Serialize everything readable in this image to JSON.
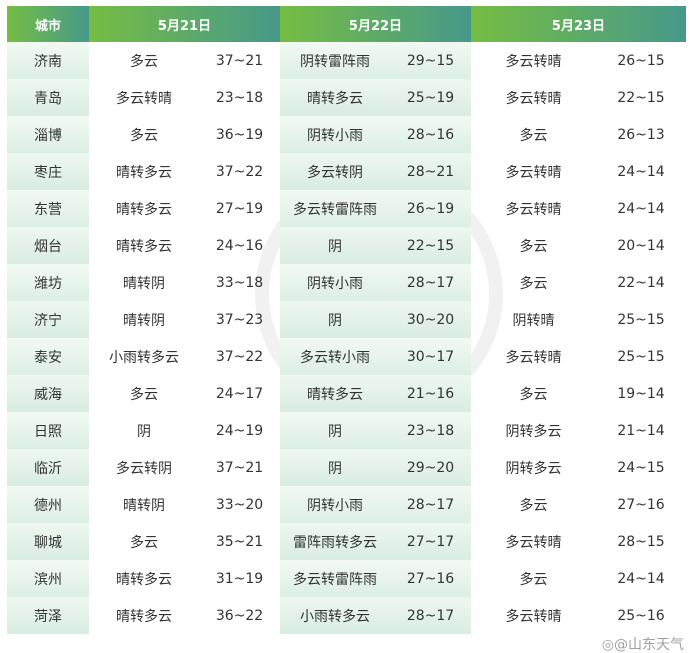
{
  "header": {
    "city": "城市",
    "dates": [
      "5月21日",
      "5月22日",
      "5月23日"
    ]
  },
  "rows": [
    [
      "济南",
      "多云",
      "37~21",
      "阴转雷阵雨",
      "29~15",
      "多云转晴",
      "26~15"
    ],
    [
      "青岛",
      "多云转晴",
      "23~18",
      "晴转多云",
      "25~19",
      "多云转晴",
      "22~15"
    ],
    [
      "淄博",
      "多云",
      "36~19",
      "阴转小雨",
      "28~16",
      "多云",
      "26~13"
    ],
    [
      "枣庄",
      "晴转多云",
      "37~22",
      "多云转阴",
      "28~21",
      "多云转晴",
      "24~14"
    ],
    [
      "东营",
      "晴转多云",
      "27~19",
      "多云转雷阵雨",
      "26~19",
      "多云转晴",
      "24~14"
    ],
    [
      "烟台",
      "晴转多云",
      "24~16",
      "阴",
      "22~15",
      "多云",
      "20~14"
    ],
    [
      "潍坊",
      "晴转阴",
      "33~18",
      "阴转小雨",
      "28~17",
      "多云",
      "22~14"
    ],
    [
      "济宁",
      "晴转阴",
      "37~23",
      "阴",
      "30~20",
      "阴转晴",
      "25~15"
    ],
    [
      "泰安",
      "小雨转多云",
      "37~22",
      "多云转小雨",
      "30~17",
      "多云转晴",
      "25~15"
    ],
    [
      "威海",
      "多云",
      "24~17",
      "晴转多云",
      "21~16",
      "多云",
      "19~14"
    ],
    [
      "日照",
      "阴",
      "24~19",
      "阴",
      "23~18",
      "阴转多云",
      "21~14"
    ],
    [
      "临沂",
      "多云转阴",
      "37~21",
      "阴",
      "29~20",
      "阴转多云",
      "24~15"
    ],
    [
      "德州",
      "晴转阴",
      "33~20",
      "阴转小雨",
      "28~17",
      "多云",
      "27~16"
    ],
    [
      "聊城",
      "多云",
      "35~21",
      "雷阵雨转多云",
      "27~17",
      "多云转晴",
      "28~15"
    ],
    [
      "滨州",
      "晴转多云",
      "31~19",
      "多云转雷阵雨",
      "27~16",
      "多云",
      "24~14"
    ],
    [
      "菏泽",
      "晴转多云",
      "36~22",
      "小雨转多云",
      "28~17",
      "多云转晴",
      "25~16"
    ]
  ],
  "watermark": "@山东天气",
  "colors": {
    "header_start": "#76bd43",
    "header_end": "#46998a"
  }
}
